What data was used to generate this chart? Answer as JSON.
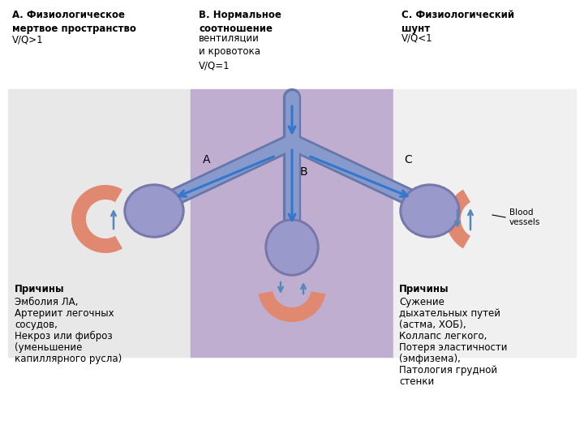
{
  "bg_color": "#ffffff",
  "left_panel_bg": "#e8e8e8",
  "center_panel_bg": "#c0aed0",
  "right_panel_bg": "#f0f0f0",
  "alveolus_color_light": "#9999cc",
  "alveolus_color_dark": "#7777aa",
  "tube_color_outer": "#6677aa",
  "tube_color_inner": "#8899cc",
  "arrow_color": "#3377cc",
  "vessel_red": "#cc6644",
  "vessel_salmon": "#e08870",
  "vessel_blue": "#5588bb",
  "title_A_bold": "А. Физиологическое\nмертвое пространство",
  "title_A_normal": "V/Q>1",
  "title_B_bold": "В. Нормальное\nсоотношение",
  "title_B_normal": "вентиляции\nи кровотока\nV/Q=1",
  "title_C_bold": "С. Физиологический\nшунт",
  "title_C_normal": "V/Q<1",
  "label_A": "A",
  "label_B": "B",
  "label_C": "C",
  "blood_vessels_label": "Blood\nvessels",
  "causes_left_title": "Причины",
  "causes_left_lines": [
    "Эмболия ЛА,",
    "Артериит легочных",
    "сосудов,",
    "Некроз или фиброз",
    "(уменьшение",
    "капиллярного русла)"
  ],
  "causes_right_title": "Причины",
  "causes_right_lines": [
    "Сужение",
    "дыхательных путей",
    "(астма, ХОБ),",
    "Коллапс легкого,",
    "Потеря эластичности",
    "(эмфизема),",
    "Патология грудной",
    "стенки"
  ]
}
